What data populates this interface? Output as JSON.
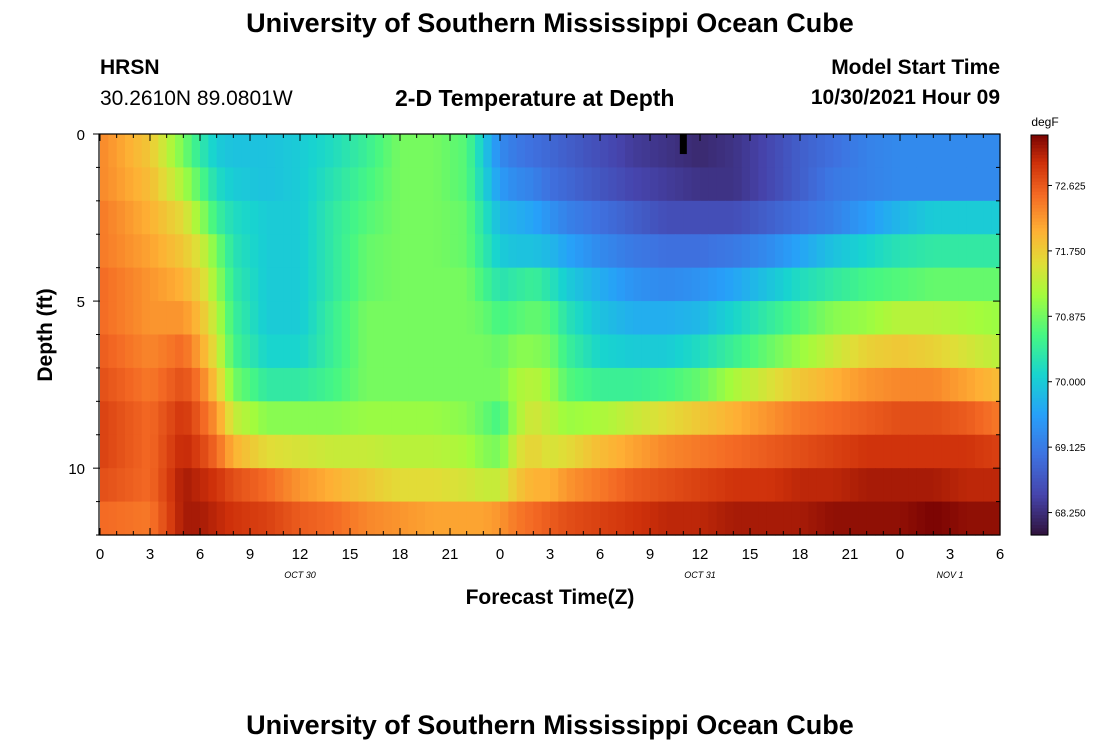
{
  "header": {
    "title": "University of Southern Mississippi Ocean Cube",
    "station": "HRSN",
    "coords": "30.2610N  89.0801W",
    "chart_title": "2-D Temperature at Depth",
    "model_label": "Model Start Time",
    "model_time": "10/30/2021 Hour 09"
  },
  "footer": {
    "title": "University of Southern Mississippi Ocean Cube"
  },
  "chart_data": {
    "type": "heatmap",
    "title": "2-D Temperature at Depth",
    "xlabel": "Forecast Time(Z)",
    "ylabel": "Depth (ft)",
    "x_tick_labels": [
      "0",
      "3",
      "6",
      "9",
      "12",
      "15",
      "18",
      "21",
      "0",
      "3",
      "6",
      "9",
      "12",
      "15",
      "18",
      "21",
      "0",
      "3",
      "6"
    ],
    "x_range_hours": [
      0,
      54
    ],
    "date_labels": [
      {
        "text": "OCT 30",
        "hour": 12
      },
      {
        "text": "OCT 31",
        "hour": 36
      },
      {
        "text": "NOV 1",
        "hour": 51
      }
    ],
    "y_tick_labels": [
      "0",
      "5",
      "10"
    ],
    "y_range": [
      0,
      12
    ],
    "y_reversed": true,
    "colorbar": {
      "unit": "degF",
      "tick_labels": [
        "72.625",
        "71.750",
        "70.875",
        "70.000",
        "69.125",
        "68.250"
      ],
      "range": [
        67.95,
        73.3
      ]
    },
    "marker": {
      "hour": 35,
      "depth": 0.3
    },
    "depth_levels": [
      0.5,
      1.5,
      2.5,
      3.5,
      4.5,
      5.5,
      6.5,
      7.5,
      8.5,
      9.5,
      10.5,
      11.5
    ],
    "keyframes_hours": [
      0,
      3,
      5,
      6,
      7,
      8,
      10,
      12,
      14,
      16,
      18,
      20,
      22,
      23,
      24,
      25,
      26,
      27,
      28,
      30,
      32,
      34,
      36,
      38,
      40,
      42,
      44,
      46,
      48,
      50,
      52,
      54
    ],
    "values": [
      [
        72.3,
        71.8,
        70.9,
        70.4,
        70.0,
        69.9,
        69.9,
        70.0,
        70.2,
        70.5,
        70.9,
        70.9,
        70.7,
        70.0,
        69.3,
        69.1,
        69.0,
        68.9,
        68.8,
        68.6,
        68.4,
        68.3,
        68.2,
        68.3,
        68.5,
        68.8,
        69.0,
        69.2,
        69.3,
        69.3,
        69.3,
        69.3
      ],
      [
        72.3,
        71.9,
        71.2,
        70.7,
        70.2,
        70.0,
        69.9,
        70.0,
        70.3,
        70.6,
        70.9,
        70.9,
        70.7,
        70.1,
        69.5,
        69.3,
        69.2,
        69.0,
        68.9,
        68.7,
        68.5,
        68.4,
        68.3,
        68.3,
        68.5,
        68.8,
        69.1,
        69.2,
        69.3,
        69.3,
        69.3,
        69.3
      ],
      [
        72.4,
        72.0,
        71.6,
        71.1,
        70.5,
        70.2,
        70.0,
        70.0,
        70.4,
        70.7,
        70.9,
        70.9,
        70.8,
        70.3,
        69.8,
        69.7,
        69.6,
        69.4,
        69.2,
        69.0,
        68.8,
        68.6,
        68.6,
        68.6,
        68.8,
        69.0,
        69.2,
        69.5,
        69.8,
        70.0,
        70.0,
        70.0
      ],
      [
        72.4,
        72.1,
        71.8,
        71.5,
        70.9,
        70.3,
        70.0,
        70.0,
        70.4,
        70.8,
        70.9,
        70.9,
        70.8,
        70.4,
        70.0,
        69.9,
        69.9,
        69.8,
        69.6,
        69.3,
        69.1,
        69.0,
        69.0,
        69.1,
        69.3,
        69.6,
        69.9,
        70.1,
        70.3,
        70.4,
        70.4,
        70.4
      ],
      [
        72.5,
        72.2,
        72.0,
        71.7,
        71.1,
        70.4,
        70.0,
        70.0,
        70.4,
        70.8,
        70.9,
        70.9,
        70.9,
        70.6,
        70.3,
        70.4,
        70.5,
        70.3,
        70.0,
        69.7,
        69.4,
        69.3,
        69.4,
        69.6,
        69.9,
        70.2,
        70.4,
        70.6,
        70.7,
        70.8,
        70.8,
        70.8
      ],
      [
        72.5,
        72.2,
        72.2,
        71.9,
        71.3,
        70.5,
        70.0,
        70.0,
        70.5,
        70.9,
        70.9,
        70.9,
        70.9,
        70.8,
        70.6,
        70.7,
        70.8,
        70.7,
        70.3,
        69.9,
        69.7,
        69.7,
        69.8,
        70.1,
        70.4,
        70.7,
        71.0,
        71.1,
        71.3,
        71.3,
        71.2,
        71.1
      ],
      [
        72.6,
        72.3,
        72.5,
        72.1,
        71.5,
        70.6,
        70.1,
        70.1,
        70.5,
        70.9,
        70.9,
        70.9,
        70.9,
        70.9,
        70.8,
        71.0,
        71.0,
        70.9,
        70.5,
        70.1,
        70.0,
        70.0,
        70.2,
        70.5,
        70.8,
        71.1,
        71.4,
        71.7,
        71.8,
        71.7,
        71.5,
        71.3
      ],
      [
        72.7,
        72.4,
        72.7,
        72.4,
        71.8,
        70.9,
        70.4,
        70.4,
        70.6,
        70.9,
        70.9,
        70.9,
        70.9,
        70.9,
        70.9,
        71.2,
        71.3,
        71.1,
        70.7,
        70.5,
        70.5,
        70.6,
        70.8,
        71.2,
        71.5,
        71.8,
        72.0,
        72.2,
        72.3,
        72.3,
        72.1,
        71.9
      ],
      [
        72.8,
        72.5,
        72.9,
        72.6,
        72.2,
        71.4,
        71.0,
        71.0,
        71.0,
        71.1,
        71.1,
        71.1,
        71.0,
        70.8,
        70.6,
        71.2,
        71.5,
        71.3,
        71.1,
        71.2,
        71.4,
        71.6,
        71.8,
        72.0,
        72.2,
        72.4,
        72.5,
        72.6,
        72.7,
        72.7,
        72.6,
        72.4
      ],
      [
        72.8,
        72.5,
        73.0,
        72.8,
        72.5,
        72.0,
        71.6,
        71.5,
        71.4,
        71.4,
        71.3,
        71.3,
        71.2,
        71.0,
        70.9,
        71.5,
        71.7,
        71.5,
        71.6,
        71.9,
        72.1,
        72.3,
        72.4,
        72.5,
        72.6,
        72.7,
        72.8,
        72.9,
        72.9,
        72.9,
        72.9,
        72.8
      ],
      [
        72.7,
        72.5,
        73.1,
        73.0,
        72.9,
        72.7,
        72.5,
        72.2,
        72.0,
        71.8,
        71.6,
        71.6,
        71.5,
        71.4,
        71.4,
        71.8,
        72.0,
        72.0,
        72.2,
        72.4,
        72.6,
        72.7,
        72.8,
        72.9,
        72.9,
        73.0,
        73.0,
        73.1,
        73.1,
        73.1,
        73.0,
        73.0
      ],
      [
        72.5,
        72.4,
        73.1,
        73.1,
        73.0,
        72.9,
        72.8,
        72.6,
        72.5,
        72.3,
        72.2,
        72.1,
        72.1,
        72.1,
        72.2,
        72.4,
        72.5,
        72.6,
        72.7,
        72.8,
        72.9,
        73.0,
        73.0,
        73.1,
        73.1,
        73.1,
        73.2,
        73.2,
        73.2,
        73.3,
        73.2,
        73.2
      ]
    ]
  }
}
